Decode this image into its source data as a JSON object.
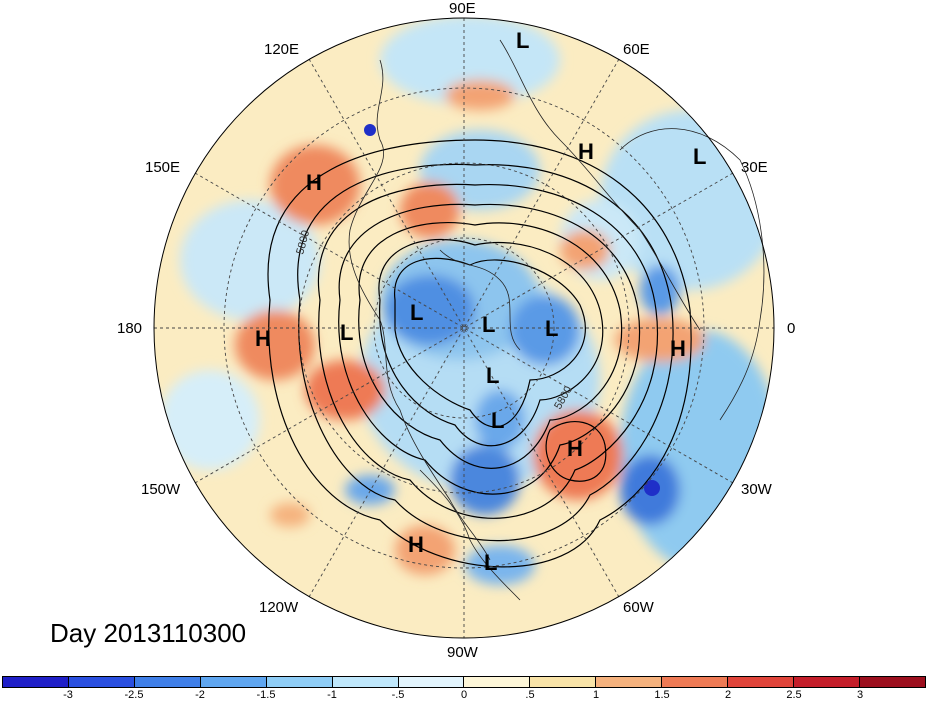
{
  "title": "Day 2013110300",
  "longitude_labels": [
    "90E",
    "60E",
    "30E",
    "0",
    "30W",
    "60W",
    "90W",
    "120W",
    "150W",
    "180",
    "150E",
    "120E"
  ],
  "contour_labels": [
    "5800",
    "5800"
  ],
  "pressure_centers": [
    {
      "label": "L"
    },
    {
      "label": "H"
    },
    {
      "label": "L"
    },
    {
      "label": "H"
    },
    {
      "label": "H"
    },
    {
      "label": "L"
    },
    {
      "label": "L"
    },
    {
      "label": "L"
    },
    {
      "label": "L"
    },
    {
      "label": "H"
    },
    {
      "label": "L"
    },
    {
      "label": "L"
    },
    {
      "label": "H"
    },
    {
      "label": "H"
    },
    {
      "label": "L"
    }
  ],
  "colorbar": {
    "tick_labels": [
      "-3",
      "-2.5",
      "-2",
      "-1.5",
      "-1",
      "-.5",
      "0",
      ".5",
      "1",
      "1.5",
      "2",
      "2.5",
      "3"
    ],
    "colors": [
      "#1f1fc8",
      "#2a4fe0",
      "#3f7fe8",
      "#5fa6f0",
      "#8fcdf6",
      "#bfe7fb",
      "#e2f4fd",
      "#fdf6d8",
      "#f8e3a8",
      "#f5b27e",
      "#ee7a55",
      "#e0443a",
      "#c41e2a",
      "#9c0f1e"
    ]
  }
}
